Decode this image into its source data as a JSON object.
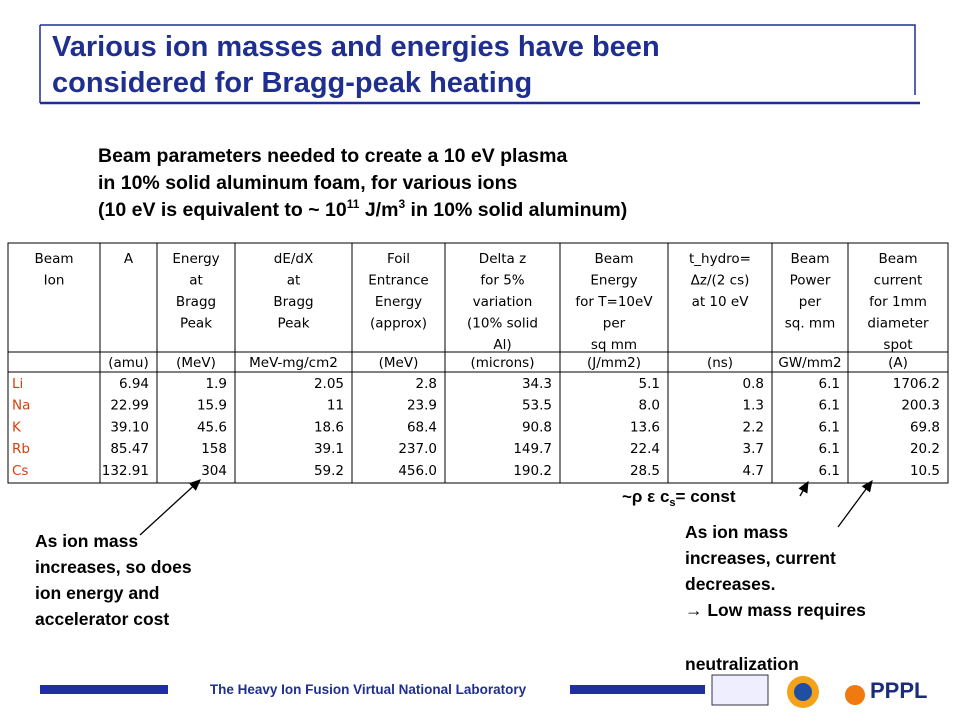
{
  "header": {
    "title_lines": [
      "Various ion masses and energies have been",
      "considered for Bragg-peak heating"
    ]
  },
  "subtitle": {
    "lines": [
      "Beam parameters needed to create a 10 eV plasma",
      "in 10% solid aluminum foam, for various ions"
    ],
    "line3": [
      "(10 eV is equivalent to ~ 10",
      "11",
      " J/m",
      "3",
      " in 10% solid aluminum)"
    ]
  },
  "table": {
    "header": [
      [
        "Beam",
        "Ion"
      ],
      [
        "A"
      ],
      [
        "Energy",
        "at",
        "Bragg",
        "Peak"
      ],
      [
        "dE/dX",
        "at",
        "Bragg",
        "Peak"
      ],
      [
        "Foil",
        "Entrance",
        "Energy",
        "(approx)"
      ],
      [
        "Delta z",
        "for 5%",
        "variation",
        "(10% solid",
        "Al)"
      ],
      [
        "Beam",
        "Energy",
        "for T=10eV",
        "per",
        "sq mm"
      ],
      [
        "t_hydro=",
        "Δz/(2 cs)",
        "at 10 eV"
      ],
      [
        "Beam",
        "Power",
        "per",
        "sq. mm"
      ],
      [
        "Beam",
        "current",
        "for 1mm",
        "diameter",
        "spot"
      ]
    ],
    "units": [
      "(amu)",
      "(MeV)",
      "MeV-mg/cm2",
      "(MeV)",
      "(microns)",
      "(J/mm2)",
      "(ns)",
      "GW/mm2",
      "(A)"
    ],
    "rows": [
      [
        "Li",
        "6.94",
        "1.9",
        "2.05",
        "2.8",
        "34.3",
        "5.1",
        "0.8",
        "6.1",
        "1706.2"
      ],
      [
        "Na",
        "22.99",
        "15.9",
        "11",
        "23.9",
        "53.5",
        "8.0",
        "1.3",
        "6.1",
        "200.3"
      ],
      [
        "K",
        "39.10",
        "45.6",
        "18.6",
        "68.4",
        "90.8",
        "13.6",
        "2.2",
        "6.1",
        "69.8"
      ],
      [
        "Rb",
        "85.47",
        "158",
        "39.1",
        "237.0",
        "149.7",
        "22.4",
        "3.7",
        "6.1",
        "20.2"
      ],
      [
        "Cs",
        "132.91",
        "304",
        "59.2",
        "456.0",
        "190.2",
        "28.5",
        "4.7",
        "6.1",
        "10.5"
      ]
    ]
  },
  "annotations": {
    "left": [
      "As ion mass",
      "increases, so does",
      "ion energy and",
      "accelerator cost"
    ],
    "const": [
      "~ρ ε c",
      "s",
      "= const"
    ],
    "right": [
      "As ion mass",
      "increases, current",
      "decreases.",
      "→ Low mass requires"
    ],
    "right_last": "neutralization"
  },
  "footer": {
    "text": "The Heavy Ion Fusion Virtual National Laboratory",
    "logo": "PPPL"
  }
}
